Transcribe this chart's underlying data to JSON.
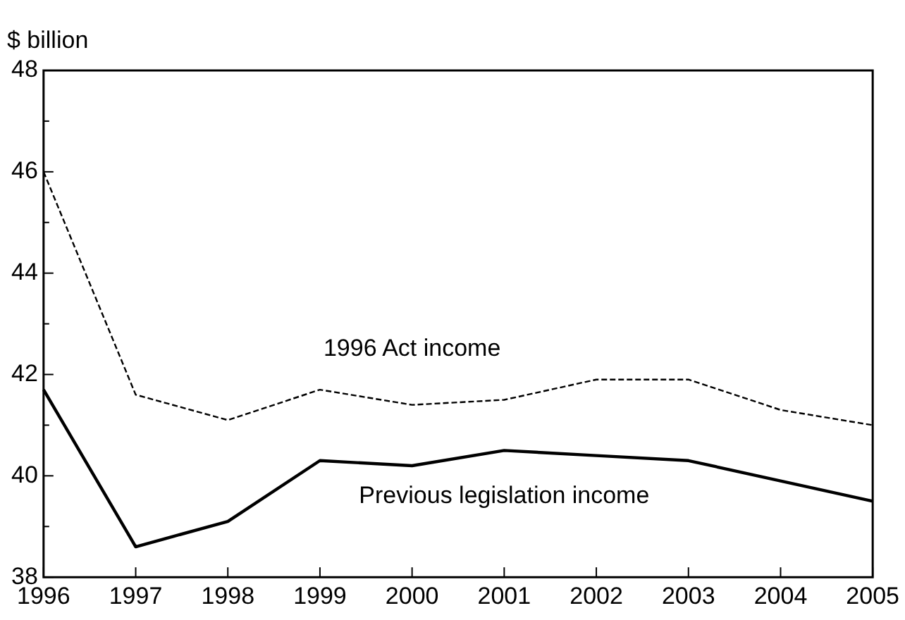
{
  "chart_data": {
    "type": "line",
    "ylabel": "$ billion",
    "categories": [
      "1996",
      "1997",
      "1998",
      "1999",
      "2000",
      "2001",
      "2002",
      "2003",
      "2004",
      "2005"
    ],
    "series": [
      {
        "name": "1996 Act income",
        "color": "#000000",
        "line_style": "dashed",
        "values": [
          46.0,
          41.6,
          41.1,
          41.7,
          41.4,
          41.5,
          41.9,
          41.9,
          41.3,
          41.0
        ]
      },
      {
        "name": "Previous legislation income",
        "color": "#000000",
        "line_style": "solid",
        "values": [
          41.7,
          38.6,
          39.1,
          40.3,
          40.2,
          40.5,
          40.4,
          40.3,
          39.9,
          39.5
        ]
      }
    ],
    "ylim": [
      38,
      48
    ],
    "yticks": [
      38,
      {
        "value": 39,
        "label": null
      },
      40,
      {
        "value": 41,
        "label": null
      },
      42,
      {
        "value": 43,
        "label": null
      },
      44,
      {
        "value": 45,
        "label": null
      },
      46,
      {
        "value": 47,
        "label": null
      },
      48
    ],
    "grid": false,
    "legend": false,
    "marker": "none"
  }
}
